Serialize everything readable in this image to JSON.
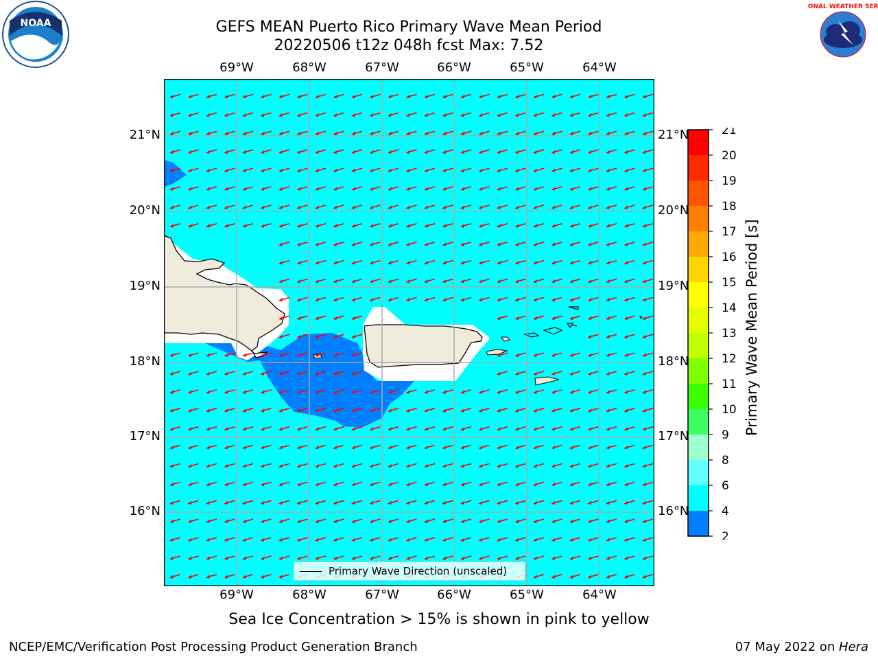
{
  "title": {
    "line1": "GEFS MEAN Puerto Rico Primary Wave Mean Period",
    "line2": "20220506 t12z 048h fcst   Max: 7.52"
  },
  "logos": {
    "left": {
      "text": "NOAA",
      "icon": "noaa-logo-icon"
    },
    "right": {
      "text": "NATIONAL WEATHER SERVICE",
      "icon": "nws-logo-icon"
    }
  },
  "map": {
    "lon_labels": [
      "69°W",
      "68°W",
      "67°W",
      "66°W",
      "65°W",
      "64°W"
    ],
    "lat_labels": [
      "21°N",
      "20°N",
      "19°N",
      "18°N",
      "17°N",
      "16°N"
    ],
    "ocean_color": "#00ffff",
    "low_period_color": "#0080ff",
    "land_color": "#efecdc",
    "arrow_color": "#ff0000",
    "wave_direction": "toward WSW"
  },
  "legend": {
    "label": "Primary Wave Direction (unscaled)"
  },
  "colorbar": {
    "label": "Primary Wave Mean Period [s]",
    "ticks": [
      "21",
      "20",
      "19",
      "18",
      "17",
      "16",
      "15",
      "14",
      "13",
      "12",
      "11",
      "10",
      "9",
      "8",
      "6",
      "4",
      "2"
    ],
    "colors": [
      "#ff0000",
      "#ff2a00",
      "#ff5500",
      "#ff8000",
      "#ffaa00",
      "#ffd500",
      "#ffff00",
      "#e6ff00",
      "#bfff00",
      "#80ff00",
      "#3cff00",
      "#3cff64",
      "#9cffd0",
      "#64ffff",
      "#00ffff",
      "#0080ff",
      "#0000ff"
    ]
  },
  "note": "Sea Ice Concentration > 15% is shown in pink to yellow",
  "footer": {
    "left": "NCEP/EMC/Verification Post Processing Product Generation Branch",
    "right_prefix": "07 May 2022 on ",
    "right_machine": "Hera"
  }
}
